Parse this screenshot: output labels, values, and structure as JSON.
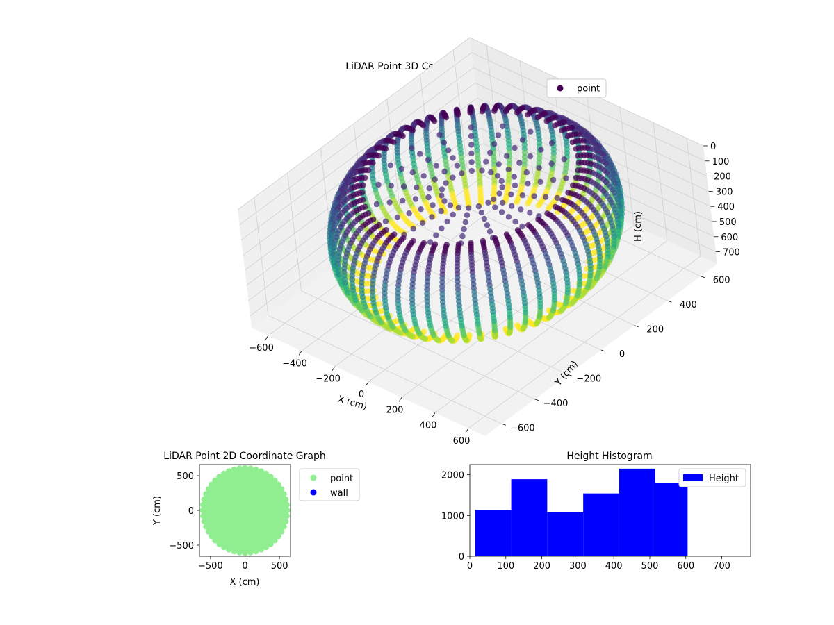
{
  "chart_data": [
    {
      "type": "scatter",
      "projection": "3d",
      "title": "LiDAR Point 3D Coordinate Graph",
      "xlabel": "X (cm)",
      "ylabel": "Y (cm)",
      "zlabel": "H (cm)",
      "xlim": [
        -700,
        700
      ],
      "ylim": [
        -700,
        700
      ],
      "zlim": [
        0,
        780
      ],
      "z_inverted": true,
      "x_ticks": [
        "−600",
        "−400",
        "−200",
        "0",
        "200",
        "400",
        "600"
      ],
      "y_ticks": [
        "−600",
        "−400",
        "−200",
        "0",
        "200",
        "400",
        "600"
      ],
      "z_ticks": [
        "0",
        "100",
        "200",
        "300",
        "400",
        "500",
        "600",
        "700"
      ],
      "colormap": "viridis",
      "grid": true,
      "legend": {
        "position": "upper-right",
        "entries": [
          {
            "label": "point",
            "color": "#440154"
          }
        ]
      },
      "series": [
        {
          "name": "point",
          "shape": "toroidal ring of radial scan slices",
          "radius_range": [
            300,
            620
          ],
          "h_range": [
            0,
            600
          ]
        }
      ]
    },
    {
      "type": "scatter",
      "title": "LiDAR Point 2D Coordinate Graph",
      "xlabel": "X (cm)",
      "ylabel": "Y (cm)",
      "xlim": [
        -660,
        660
      ],
      "ylim": [
        -660,
        660
      ],
      "x_ticks": [
        "−500",
        "0",
        "500"
      ],
      "y_ticks": [
        "−500",
        "0",
        "500"
      ],
      "legend": {
        "position": "outside-right",
        "entries": [
          {
            "label": "point",
            "color": "#90ee90"
          },
          {
            "label": "wall",
            "color": "#0000ff"
          }
        ]
      },
      "series": [
        {
          "name": "point",
          "color": "#90ee90",
          "shape": "filled disk",
          "radius": 620
        }
      ]
    },
    {
      "type": "bar",
      "title": "Height Histogram",
      "xlim": [
        0,
        780
      ],
      "ylim": [
        0,
        2250
      ],
      "x_ticks": [
        "0",
        "100",
        "200",
        "300",
        "400",
        "500",
        "600",
        "700"
      ],
      "y_ticks": [
        "0",
        "1000",
        "2000"
      ],
      "bin_edges": [
        15,
        115,
        215,
        315,
        415,
        515,
        605
      ],
      "values": [
        1140,
        1890,
        1080,
        1540,
        2150,
        1800
      ],
      "color": "#0000ff",
      "legend": {
        "position": "upper-right",
        "entries": [
          {
            "label": "Height",
            "color": "#0000ff"
          }
        ]
      }
    }
  ]
}
